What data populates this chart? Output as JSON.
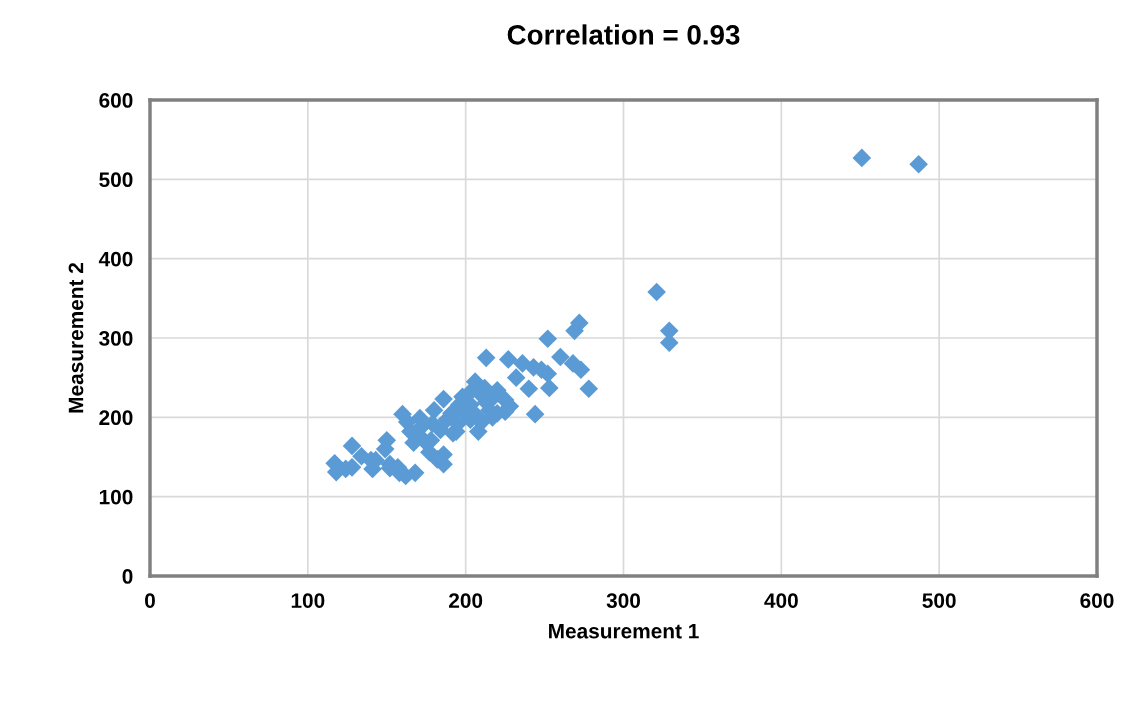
{
  "chart_data": {
    "type": "scatter",
    "title": "Correlation = 0.93",
    "xlabel": "Measurement 1",
    "ylabel": "Measurement 2",
    "xlim": [
      0,
      600
    ],
    "ylim": [
      0,
      600
    ],
    "xticks": [
      0,
      100,
      200,
      300,
      400,
      500,
      600
    ],
    "yticks": [
      0,
      100,
      200,
      300,
      400,
      500,
      600
    ],
    "grid": true,
    "marker": "diamond",
    "series": [
      {
        "color": "#5b9bd5",
        "x": [
          451,
          487,
          321,
          329,
          329,
          272,
          269,
          252,
          213,
          227,
          236,
          243,
          260,
          268,
          273,
          278,
          253,
          240,
          244,
          252,
          248,
          232,
          220,
          225,
          225,
          220,
          228,
          208,
          210,
          206,
          203,
          198,
          203,
          213,
          215,
          210,
          212,
          207,
          200,
          195,
          191,
          188,
          186,
          180,
          179,
          184,
          178,
          186,
          186,
          182,
          172,
          170,
          167,
          171,
          165,
          160,
          163,
          177,
          174,
          158,
          168,
          162,
          157,
          152,
          150,
          149,
          152,
          140,
          143,
          141,
          134,
          128,
          128,
          124,
          118,
          117,
          194,
          196,
          217,
          203,
          192,
          217
        ],
        "values": [
          527,
          519,
          358,
          309,
          294,
          319,
          309,
          299,
          275,
          273,
          268,
          263,
          276,
          268,
          260,
          236,
          237,
          236,
          204,
          255,
          260,
          250,
          234,
          222,
          207,
          205,
          214,
          182,
          194,
          245,
          232,
          226,
          216,
          219,
          209,
          228,
          237,
          202,
          205,
          192,
          205,
          197,
          223,
          209,
          192,
          184,
          171,
          153,
          141,
          147,
          188,
          176,
          168,
          199,
          182,
          204,
          194,
          156,
          170,
          130,
          130,
          126,
          137,
          141,
          171,
          160,
          136,
          146,
          146,
          135,
          151,
          164,
          137,
          135,
          131,
          142,
          182,
          216,
          224,
          197,
          180,
          200
        ]
      }
    ]
  }
}
